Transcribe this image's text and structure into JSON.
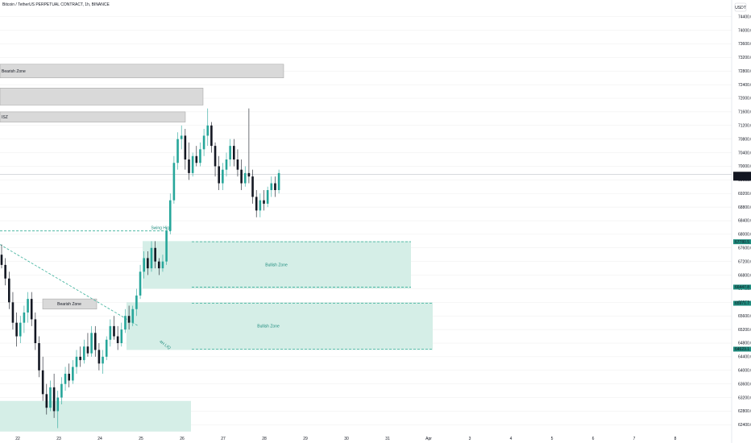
{
  "header": {
    "title": "Bitcoin / TetherUS PERPETUAL CONTRACT, 1h, BINANCE"
  },
  "axis": {
    "unit_label": "USDT"
  },
  "chart_data": {
    "type": "candlestick",
    "symbol": "BTCUSDT.P",
    "timeframe": "1h",
    "exchange": "BINANCE",
    "ylim": [
      62100,
      74700
    ],
    "y_ticks": [
      62400,
      62800,
      63200,
      63600,
      64000,
      64400,
      64800,
      65200,
      65600,
      66000,
      66400,
      66800,
      67200,
      67600,
      68000,
      68400,
      68800,
      69200,
      69600,
      70000,
      70400,
      70800,
      71200,
      71600,
      72000,
      72400,
      72800,
      73200,
      73600,
      74000,
      74400
    ],
    "y_tick_labels": [
      "62400.0",
      "62800.0",
      "63200.0",
      "63600.0",
      "64000.0",
      "64400.0",
      "64800.0",
      "65200.0",
      "65600.0",
      "66000.0",
      "66400.0",
      "66800.0",
      "67200.0",
      "67600.0",
      "68000.0",
      "68400.0",
      "68800.0",
      "69200.0",
      "69600.0",
      "70000.0",
      "70400.0",
      "70800.0",
      "71200.0",
      "71600.0",
      "72000.0",
      "72400.0",
      "72800.0",
      "73200.0",
      "73600.0",
      "74000.0",
      "74400.0"
    ],
    "x_ticks": [
      "22",
      "23",
      "24",
      "25",
      "26",
      "27",
      "28",
      "29",
      "30",
      "31",
      "Apr",
      "3",
      "4",
      "5",
      "6",
      "7",
      "8"
    ],
    "candles": [
      {
        "o": 67400,
        "h": 67700,
        "l": 67000,
        "c": 67100
      },
      {
        "o": 67100,
        "h": 67300,
        "l": 66500,
        "c": 66700
      },
      {
        "o": 66700,
        "h": 66900,
        "l": 65800,
        "c": 66000
      },
      {
        "o": 66000,
        "h": 66300,
        "l": 65200,
        "c": 65400
      },
      {
        "o": 65400,
        "h": 65700,
        "l": 64700,
        "c": 65000
      },
      {
        "o": 65000,
        "h": 65600,
        "l": 64800,
        "c": 65400
      },
      {
        "o": 65400,
        "h": 65900,
        "l": 65100,
        "c": 65700
      },
      {
        "o": 65700,
        "h": 66300,
        "l": 65400,
        "c": 66100
      },
      {
        "o": 66100,
        "h": 66300,
        "l": 65300,
        "c": 65500
      },
      {
        "o": 65500,
        "h": 65700,
        "l": 64600,
        "c": 64800
      },
      {
        "o": 64800,
        "h": 65000,
        "l": 63800,
        "c": 64000
      },
      {
        "o": 64000,
        "h": 64400,
        "l": 63100,
        "c": 63300
      },
      {
        "o": 63300,
        "h": 63600,
        "l": 62700,
        "c": 62900
      },
      {
        "o": 62900,
        "h": 63700,
        "l": 62800,
        "c": 63500
      },
      {
        "o": 63500,
        "h": 63900,
        "l": 62600,
        "c": 62800
      },
      {
        "o": 62800,
        "h": 63400,
        "l": 62300,
        "c": 63200
      },
      {
        "o": 63200,
        "h": 63800,
        "l": 63000,
        "c": 63600
      },
      {
        "o": 63600,
        "h": 64100,
        "l": 63400,
        "c": 63900
      },
      {
        "o": 63900,
        "h": 64200,
        "l": 63500,
        "c": 63700
      },
      {
        "o": 63700,
        "h": 64300,
        "l": 63600,
        "c": 64100
      },
      {
        "o": 64100,
        "h": 64600,
        "l": 63900,
        "c": 64400
      },
      {
        "o": 64400,
        "h": 64700,
        "l": 64100,
        "c": 64300
      },
      {
        "o": 64300,
        "h": 64900,
        "l": 64200,
        "c": 64700
      },
      {
        "o": 64700,
        "h": 65100,
        "l": 64400,
        "c": 64500
      },
      {
        "o": 64500,
        "h": 65300,
        "l": 64400,
        "c": 65100
      },
      {
        "o": 65100,
        "h": 65300,
        "l": 64400,
        "c": 64600
      },
      {
        "o": 64600,
        "h": 64800,
        "l": 64000,
        "c": 64200
      },
      {
        "o": 64200,
        "h": 64600,
        "l": 63900,
        "c": 64400
      },
      {
        "o": 64400,
        "h": 65000,
        "l": 64300,
        "c": 64900
      },
      {
        "o": 64900,
        "h": 65500,
        "l": 64700,
        "c": 65300
      },
      {
        "o": 65300,
        "h": 65600,
        "l": 64900,
        "c": 65000
      },
      {
        "o": 65000,
        "h": 65300,
        "l": 64600,
        "c": 64800
      },
      {
        "o": 64800,
        "h": 65400,
        "l": 64700,
        "c": 65200
      },
      {
        "o": 65200,
        "h": 65800,
        "l": 65100,
        "c": 65600
      },
      {
        "o": 65600,
        "h": 65900,
        "l": 65200,
        "c": 65400
      },
      {
        "o": 65400,
        "h": 65900,
        "l": 65300,
        "c": 65800
      },
      {
        "o": 65800,
        "h": 66400,
        "l": 65600,
        "c": 66200
      },
      {
        "o": 66200,
        "h": 67100,
        "l": 66100,
        "c": 66900
      },
      {
        "o": 66900,
        "h": 67500,
        "l": 66700,
        "c": 67300
      },
      {
        "o": 67300,
        "h": 67500,
        "l": 66800,
        "c": 67000
      },
      {
        "o": 67000,
        "h": 67800,
        "l": 66900,
        "c": 67600
      },
      {
        "o": 67600,
        "h": 67800,
        "l": 67000,
        "c": 67200
      },
      {
        "o": 67200,
        "h": 67300,
        "l": 66800,
        "c": 67000
      },
      {
        "o": 67000,
        "h": 67400,
        "l": 66900,
        "c": 67200
      },
      {
        "o": 67200,
        "h": 68200,
        "l": 67100,
        "c": 68100
      },
      {
        "o": 68100,
        "h": 69200,
        "l": 68000,
        "c": 69000
      },
      {
        "o": 69000,
        "h": 70300,
        "l": 68900,
        "c": 70100
      },
      {
        "o": 70100,
        "h": 71000,
        "l": 69900,
        "c": 70800
      },
      {
        "o": 70800,
        "h": 71200,
        "l": 70500,
        "c": 70900
      },
      {
        "o": 70900,
        "h": 71100,
        "l": 69900,
        "c": 70200
      },
      {
        "o": 70200,
        "h": 70700,
        "l": 69600,
        "c": 69800
      },
      {
        "o": 69800,
        "h": 70400,
        "l": 69700,
        "c": 70300
      },
      {
        "o": 70300,
        "h": 70600,
        "l": 70000,
        "c": 70100
      },
      {
        "o": 70100,
        "h": 70700,
        "l": 70000,
        "c": 70500
      },
      {
        "o": 70500,
        "h": 71100,
        "l": 70300,
        "c": 70900
      },
      {
        "o": 70900,
        "h": 71700,
        "l": 70600,
        "c": 71200
      },
      {
        "o": 71200,
        "h": 71300,
        "l": 70400,
        "c": 70600
      },
      {
        "o": 70600,
        "h": 70700,
        "l": 69700,
        "c": 70000
      },
      {
        "o": 70000,
        "h": 70300,
        "l": 69300,
        "c": 69500
      },
      {
        "o": 69500,
        "h": 70100,
        "l": 69300,
        "c": 69900
      },
      {
        "o": 69900,
        "h": 70400,
        "l": 69700,
        "c": 70200
      },
      {
        "o": 70200,
        "h": 70800,
        "l": 70000,
        "c": 70600
      },
      {
        "o": 70600,
        "h": 70800,
        "l": 70000,
        "c": 70200
      },
      {
        "o": 70200,
        "h": 70500,
        "l": 69700,
        "c": 69900
      },
      {
        "o": 69900,
        "h": 70200,
        "l": 69300,
        "c": 69500
      },
      {
        "o": 69500,
        "h": 70000,
        "l": 69400,
        "c": 69800
      },
      {
        "o": 69800,
        "h": 71700,
        "l": 69500,
        "c": 69700
      },
      {
        "o": 69700,
        "h": 69900,
        "l": 68900,
        "c": 69100
      },
      {
        "o": 69100,
        "h": 69300,
        "l": 68500,
        "c": 68700
      },
      {
        "o": 68700,
        "h": 69200,
        "l": 68500,
        "c": 69000
      },
      {
        "o": 69000,
        "h": 69300,
        "l": 68700,
        "c": 68900
      },
      {
        "o": 68900,
        "h": 69400,
        "l": 68800,
        "c": 69300
      },
      {
        "o": 69300,
        "h": 69700,
        "l": 69100,
        "c": 69500
      },
      {
        "o": 69500,
        "h": 69700,
        "l": 69100,
        "c": 69300
      },
      {
        "o": 69300,
        "h": 69900,
        "l": 69200,
        "c": 69800
      }
    ],
    "zones": [
      {
        "label": "Bearish Zone",
        "bottom": 72600,
        "top": 73000,
        "kind": "bearish"
      },
      {
        "label": "",
        "bottom": 71800,
        "top": 72300,
        "kind": "bearish"
      },
      {
        "label": "ISZ",
        "bottom": 71300,
        "top": 71600,
        "kind": "bearish"
      },
      {
        "label": "Bearish Zone",
        "bottom": 65800,
        "top": 66100,
        "kind": "bearish"
      },
      {
        "label": "Bullish Zone",
        "bottom": 66400,
        "top": 67800,
        "kind": "bullish"
      },
      {
        "label": "Bullish Zone",
        "bottom": 64600,
        "top": 66000,
        "kind": "bullish"
      },
      {
        "label": "",
        "bottom": 62200,
        "top": 63100,
        "kind": "bullish"
      }
    ],
    "annotations": [
      {
        "text": "Swing High",
        "price": 68100
      },
      {
        "text": "4H LIQ",
        "price": 65100
      }
    ],
    "price_labels": [
      {
        "price": 69755.8,
        "text": "69755.8",
        "sub": "01:21",
        "kind": "last"
      },
      {
        "price": 67780.5,
        "text": "67780.5",
        "kind": "bullish"
      },
      {
        "price": 66447.8,
        "text": "66447.8",
        "kind": "bullish"
      },
      {
        "price": 65971.7,
        "text": "65971.7",
        "kind": "bullish"
      },
      {
        "price": 64623.1,
        "text": "64623.1",
        "kind": "bullish"
      }
    ],
    "colors": {
      "up": "#26a69a",
      "down": "#131722",
      "bullish_fill": "#d5eee7",
      "bullish_stroke": "#3ab09a",
      "bearish_fill": "#d9d9d9",
      "bearish_stroke": "#9e9e9e",
      "label_teal": "#1e8c7e",
      "last_price_bg": "#131722",
      "grid": "#eeeeee"
    }
  }
}
